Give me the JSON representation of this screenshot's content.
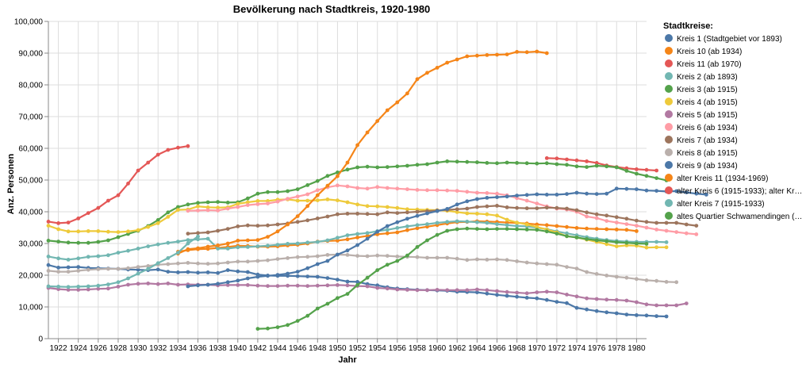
{
  "chart_data": {
    "type": "line",
    "title": "Bevölkerung nach Stadtkreis, 1920-1980",
    "xlabel": "Jahr",
    "ylabel": "Anz. Personen",
    "xlim": [
      1921,
      1981
    ],
    "ylim": [
      0,
      100000
    ],
    "x_ticks": [
      1922,
      1924,
      1926,
      1928,
      1930,
      1932,
      1934,
      1936,
      1938,
      1940,
      1942,
      1944,
      1946,
      1948,
      1950,
      1952,
      1954,
      1956,
      1958,
      1960,
      1962,
      1964,
      1966,
      1968,
      1970,
      1972,
      1974,
      1976,
      1978,
      1980
    ],
    "y_ticks": [
      "0",
      "10,000",
      "20,000",
      "30,000",
      "40,000",
      "50,000",
      "60,000",
      "70,000",
      "80,000",
      "90,000",
      "100,000"
    ],
    "y_tick_values": [
      0,
      10000,
      20000,
      30000,
      40000,
      50000,
      60000,
      70000,
      80000,
      90000,
      100000
    ],
    "grid": true,
    "legend_title": "Stadtkreise:",
    "legend_position": "right",
    "series": [
      {
        "name": "Kreis 1 (Stadtgebiet vor 1893)",
        "color": "#4c78a8",
        "start": 1921,
        "values": [
          23200,
          22400,
          22500,
          22600,
          22300,
          22200,
          22100,
          22000,
          21800,
          21700,
          21600,
          21800,
          21100,
          20900,
          21000,
          20800,
          20900,
          20700,
          21600,
          21200,
          21000,
          20200,
          19900,
          19800,
          19800,
          19700,
          19600,
          19500,
          19100,
          18600,
          18000,
          17900,
          17200,
          16800,
          16200,
          15800,
          15600,
          15400,
          15300,
          15200,
          15100,
          14800,
          14700,
          14600,
          14200,
          13800,
          13500,
          13200,
          12900,
          12700,
          12200,
          11600,
          11200,
          9700,
          9200,
          8700,
          8300,
          8000,
          7600,
          7400,
          7300,
          7100,
          7000
        ]
      },
      {
        "name": "Kreis 10 (ab 1934)",
        "color": "#f58518",
        "start": 1934,
        "values": [
          27400,
          27900,
          28200,
          28300,
          28600,
          28900,
          29300,
          29200,
          29000,
          29000,
          29100,
          29400,
          29600,
          30000,
          30600,
          30800,
          30900,
          31300,
          31900,
          32400,
          32900,
          33200,
          33500,
          34200,
          34800,
          35300,
          35800,
          36300,
          36700,
          36800,
          37000,
          36900,
          36800,
          36600,
          36500,
          36300,
          36000,
          35800,
          35500,
          35200,
          34900,
          34700,
          34600,
          34500,
          34400,
          34300,
          33900
        ]
      },
      {
        "name": "Kreis 11 (ab 1970)",
        "color": "#e45756",
        "start": 1971,
        "values": [
          56900,
          56800,
          56500,
          56200,
          55900,
          55400,
          54600,
          54100,
          53700,
          53400,
          53200,
          53000
        ]
      },
      {
        "name": "Kreis 2 (ab 1893)",
        "color": "#72b7b2",
        "start": 1921,
        "values": [
          25900,
          25300,
          24900,
          25300,
          25800,
          26000,
          26300,
          27100,
          27700,
          28400,
          29100,
          29700,
          30200,
          30600,
          31100,
          31300,
          31500,
          28400,
          28400,
          28800,
          28900,
          29100,
          29300,
          29600,
          29900,
          30000,
          30300,
          30500,
          31000,
          31800,
          32600,
          33000,
          33300,
          33900,
          34300,
          34900,
          35400,
          35800,
          36100,
          36500,
          36800,
          37000,
          36900,
          36700,
          36500,
          36100,
          35800,
          35500,
          35400,
          35000,
          34500,
          33800,
          33200,
          32600,
          32000,
          31500,
          31100,
          30800,
          30600,
          30500,
          30500,
          30500,
          30400
        ]
      },
      {
        "name": "Kreis 3 (ab 1915)",
        "color": "#54a24b",
        "start": 1921,
        "values": [
          30900,
          30600,
          30300,
          30200,
          30200,
          30500,
          31000,
          32000,
          33000,
          34000,
          35500,
          37400,
          39800,
          41500,
          42300,
          42800,
          43000,
          43100,
          42900,
          43000,
          44200,
          45700,
          46200,
          46200,
          46500,
          47100,
          48400,
          49700,
          51300,
          52400,
          53300,
          54000,
          54200,
          54000,
          54100,
          54300,
          54500,
          54800,
          55000,
          55500,
          55900,
          55800,
          55700,
          55600,
          55400,
          55300,
          55500,
          55400,
          55300,
          55200,
          55300,
          55000,
          54800,
          54300,
          54100,
          54500,
          54300,
          54000,
          52900,
          52000,
          51300,
          50600,
          49900
        ]
      },
      {
        "name": "Kreis 4 (ab 1915)",
        "color": "#eeca3b",
        "start": 1921,
        "values": [
          35600,
          34500,
          33800,
          33800,
          33900,
          33900,
          33700,
          33600,
          33800,
          34200,
          35200,
          36400,
          38400,
          40600,
          40700,
          41700,
          41400,
          41300,
          41400,
          42500,
          43000,
          43400,
          43400,
          43800,
          43900,
          43500,
          43500,
          43600,
          43900,
          43600,
          43000,
          42300,
          41800,
          41700,
          41500,
          41200,
          40800,
          40700,
          40600,
          40500,
          40300,
          39900,
          39500,
          39400,
          39200,
          38800,
          37500,
          36600,
          36000,
          35200,
          34400,
          33500,
          32300,
          31900,
          31200,
          30500,
          29800,
          29100,
          29400,
          29300,
          28700,
          28800,
          28800
        ]
      },
      {
        "name": "Kreis 5 (ab 1915)",
        "color": "#b279a2",
        "start": 1921,
        "values": [
          16000,
          15600,
          15400,
          15400,
          15500,
          15700,
          15800,
          16400,
          17000,
          17300,
          17400,
          17200,
          17400,
          17000,
          17100,
          17000,
          17000,
          16800,
          16900,
          16900,
          16900,
          16700,
          16600,
          16600,
          16700,
          16700,
          16600,
          16700,
          16800,
          16900,
          16800,
          16600,
          16500,
          16000,
          15800,
          15500,
          15400,
          15300,
          15300,
          15400,
          15300,
          15300,
          15300,
          15500,
          15300,
          15000,
          14700,
          14500,
          14300,
          14600,
          14800,
          14600,
          13900,
          13300,
          12700,
          12500,
          12300,
          12200,
          12000,
          11500,
          10800,
          10500,
          10500,
          10500,
          11100
        ]
      },
      {
        "name": "Kreis 6 (ab 1934)",
        "color": "#ff9da6",
        "start": 1935,
        "values": [
          40300,
          40400,
          40500,
          40400,
          41000,
          41500,
          42100,
          42400,
          42600,
          43200,
          44100,
          44800,
          45500,
          46800,
          47700,
          48300,
          48000,
          47500,
          47300,
          47800,
          47500,
          47300,
          47100,
          46900,
          46800,
          46800,
          46700,
          46600,
          46300,
          46000,
          45900,
          45700,
          45200,
          44300,
          43500,
          42600,
          41700,
          41000,
          40700,
          40000,
          38500,
          38000,
          37100,
          36600,
          36100,
          35600,
          35000,
          34400,
          34000,
          33600,
          33200,
          32900
        ]
      },
      {
        "name": "Kreis 7 (ab 1934)",
        "color": "#9d755d",
        "start": 1935,
        "values": [
          33100,
          33300,
          33500,
          34000,
          34600,
          35400,
          35700,
          35600,
          35700,
          36000,
          36300,
          36800,
          37300,
          37900,
          38500,
          39200,
          39400,
          39400,
          39300,
          39200,
          39800,
          39600,
          39800,
          40000,
          40200,
          40400,
          40600,
          40800,
          41000,
          41500,
          41700,
          41900,
          41400,
          41200,
          41100,
          41100,
          41300,
          41200,
          41000,
          40500,
          39800,
          39200,
          38800,
          38300,
          37800,
          37200,
          36800,
          36500,
          36500,
          36500,
          36000,
          35600
        ]
      },
      {
        "name": "Kreis 8 (ab 1915)",
        "color": "#bab0ac",
        "start": 1921,
        "values": [
          21400,
          21100,
          21100,
          21400,
          21700,
          21900,
          22000,
          22000,
          22200,
          22600,
          22900,
          23300,
          23500,
          23700,
          23900,
          23700,
          23600,
          23700,
          24000,
          24300,
          24300,
          24500,
          24700,
          25100,
          25400,
          25700,
          25800,
          26000,
          26400,
          26500,
          26400,
          26100,
          26000,
          26200,
          26100,
          25900,
          25800,
          25700,
          25500,
          25500,
          25500,
          25200,
          24800,
          25000,
          24900,
          25000,
          24800,
          24400,
          24000,
          23700,
          23500,
          23300,
          22600,
          22100,
          21000,
          20400,
          19900,
          19500,
          19200,
          18800,
          18400,
          18200,
          17900,
          17800
        ]
      },
      {
        "name": "Kreis 9 (ab 1934)",
        "color": "#4c78a8",
        "start": 1935,
        "values": [
          16500,
          16800,
          17000,
          17300,
          17800,
          18300,
          19000,
          19500,
          19800,
          20100,
          20500,
          21100,
          22200,
          23500,
          24500,
          26500,
          27800,
          29500,
          31500,
          33700,
          35500,
          36700,
          37800,
          38700,
          39500,
          40200,
          40900,
          42300,
          43300,
          44000,
          44400,
          44600,
          44800,
          45100,
          45300,
          45500,
          45400,
          45400,
          45600,
          46000,
          45700,
          45600,
          45700,
          47300,
          47200,
          47100,
          46700,
          46600,
          46400,
          46500,
          46100,
          45700,
          45400
        ]
      },
      {
        "name": "alter Kreis 11 (1934-1969)",
        "color": "#f58518",
        "start": 1934,
        "values": [
          26800,
          28200,
          28500,
          29000,
          29400,
          30000,
          30900,
          31000,
          31100,
          32100,
          33800,
          36000,
          38600,
          41800,
          45200,
          48200,
          51200,
          55500,
          61000,
          65000,
          68600,
          72000,
          74500,
          77300,
          81800,
          83800,
          85400,
          87000,
          88000,
          89000,
          89200,
          89400,
          89500,
          89600,
          90400,
          90300,
          90500,
          90000
        ]
      },
      {
        "name": "alter Kreis 6 (1915-1933); alter Kr…",
        "color": "#e45756",
        "start": 1921,
        "values": [
          36900,
          36400,
          36600,
          37900,
          39600,
          41200,
          43500,
          45200,
          48900,
          53000,
          55500,
          58000,
          59500,
          60200,
          60700
        ]
      },
      {
        "name": "alter Kreis 7 (1915-1933)",
        "color": "#72b7b2",
        "start": 1921,
        "values": [
          16500,
          16400,
          16300,
          16400,
          16500,
          16700,
          17100,
          17800,
          19000,
          20500,
          22000,
          23800,
          25400,
          27100,
          30000,
          32200
        ]
      },
      {
        "name": "altes Quartier Schwamendingen (…",
        "color": "#54a24b",
        "start": 1942,
        "values": [
          3100,
          3200,
          3600,
          4300,
          5600,
          7200,
          9500,
          11000,
          12800,
          14100,
          16900,
          19200,
          21600,
          23300,
          24500,
          26200,
          28900,
          31000,
          32700,
          34000,
          34500,
          34700,
          34600,
          34500,
          34600,
          34600,
          34500,
          34400,
          34300,
          33800,
          33100,
          32300,
          31900,
          31400,
          31000,
          30700,
          30400,
          30200,
          30000,
          29900
        ]
      }
    ]
  }
}
